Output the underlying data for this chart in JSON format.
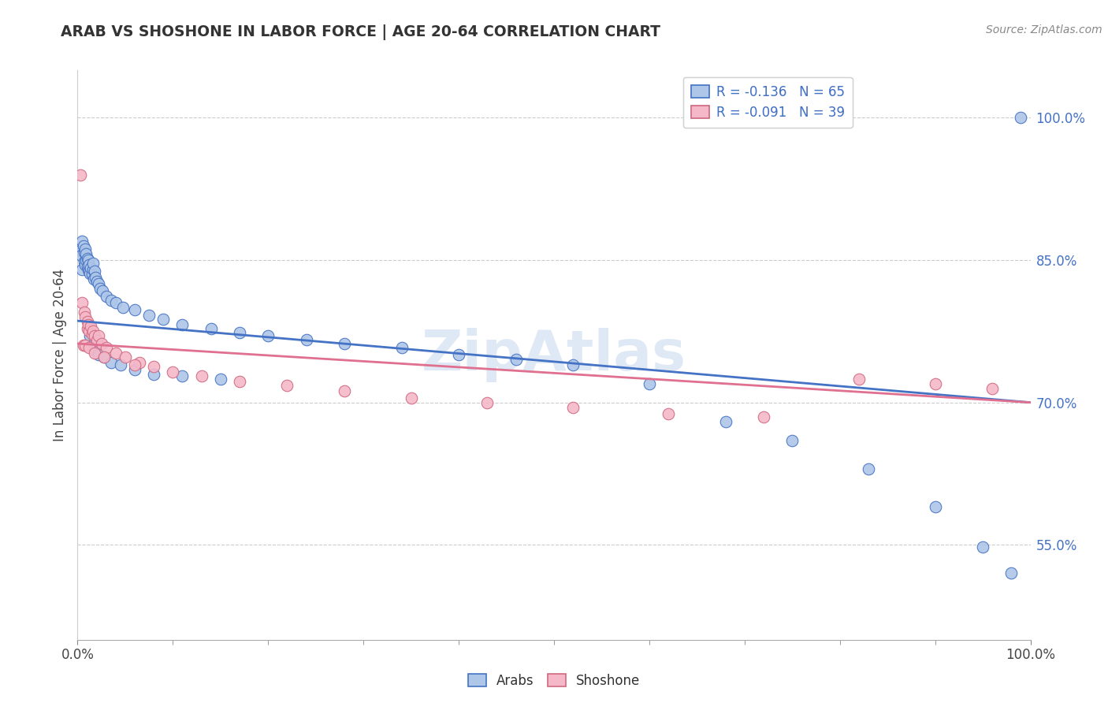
{
  "title": "ARAB VS SHOSHONE IN LABOR FORCE | AGE 20-64 CORRELATION CHART",
  "source": "Source: ZipAtlas.com",
  "ylabel": "In Labor Force | Age 20-64",
  "xlim": [
    0.0,
    1.0
  ],
  "ylim": [
    0.45,
    1.05
  ],
  "yticks": [
    0.55,
    0.7,
    0.85,
    1.0
  ],
  "ytick_labels": [
    "55.0%",
    "70.0%",
    "85.0%",
    "100.0%"
  ],
  "xtick_labels": [
    "0.0%",
    "100.0%"
  ],
  "arab_R": "-0.136",
  "arab_N": "65",
  "shoshone_R": "-0.091",
  "shoshone_N": "39",
  "arab_color": "#aec6e8",
  "shoshone_color": "#f4b8c8",
  "arab_line_color": "#4472c4",
  "shoshone_line_color": "#e07090",
  "watermark": "ZipAtlas",
  "arab_trend_start": 0.786,
  "arab_trend_end": 0.7,
  "shoshone_trend_start": 0.762,
  "shoshone_trend_end": 0.7,
  "arab_x": [
    0.003,
    0.004,
    0.005,
    0.005,
    0.006,
    0.007,
    0.007,
    0.008,
    0.008,
    0.009,
    0.009,
    0.01,
    0.01,
    0.011,
    0.011,
    0.012,
    0.012,
    0.013,
    0.014,
    0.015,
    0.016,
    0.016,
    0.017,
    0.018,
    0.019,
    0.02,
    0.022,
    0.024,
    0.026,
    0.03,
    0.035,
    0.04,
    0.048,
    0.06,
    0.075,
    0.09,
    0.11,
    0.14,
    0.17,
    0.2,
    0.24,
    0.28,
    0.34,
    0.4,
    0.46,
    0.52,
    0.6,
    0.68,
    0.75,
    0.83,
    0.9,
    0.95,
    0.98,
    0.013,
    0.015,
    0.018,
    0.022,
    0.028,
    0.035,
    0.045,
    0.06,
    0.08,
    0.11,
    0.15,
    0.99
  ],
  "arab_y": [
    0.86,
    0.855,
    0.87,
    0.84,
    0.865,
    0.848,
    0.858,
    0.845,
    0.862,
    0.85,
    0.857,
    0.843,
    0.852,
    0.84,
    0.85,
    0.838,
    0.845,
    0.836,
    0.842,
    0.835,
    0.84,
    0.847,
    0.83,
    0.838,
    0.832,
    0.828,
    0.825,
    0.82,
    0.818,
    0.812,
    0.808,
    0.805,
    0.8,
    0.798,
    0.792,
    0.788,
    0.782,
    0.778,
    0.774,
    0.77,
    0.766,
    0.762,
    0.758,
    0.75,
    0.745,
    0.74,
    0.72,
    0.68,
    0.66,
    0.63,
    0.59,
    0.548,
    0.52,
    0.77,
    0.76,
    0.755,
    0.75,
    0.748,
    0.742,
    0.74,
    0.735,
    0.73,
    0.728,
    0.725,
    1.0
  ],
  "shoshone_x": [
    0.003,
    0.005,
    0.007,
    0.008,
    0.01,
    0.01,
    0.011,
    0.012,
    0.014,
    0.015,
    0.016,
    0.018,
    0.02,
    0.022,
    0.025,
    0.03,
    0.04,
    0.05,
    0.065,
    0.08,
    0.1,
    0.13,
    0.17,
    0.22,
    0.28,
    0.35,
    0.43,
    0.52,
    0.62,
    0.72,
    0.82,
    0.9,
    0.96,
    0.006,
    0.008,
    0.012,
    0.018,
    0.028,
    0.06
  ],
  "shoshone_y": [
    0.94,
    0.805,
    0.795,
    0.79,
    0.785,
    0.778,
    0.782,
    0.775,
    0.78,
    0.772,
    0.775,
    0.77,
    0.765,
    0.77,
    0.762,
    0.758,
    0.752,
    0.748,
    0.742,
    0.738,
    0.732,
    0.728,
    0.722,
    0.718,
    0.712,
    0.705,
    0.7,
    0.695,
    0.688,
    0.685,
    0.725,
    0.72,
    0.715,
    0.76,
    0.76,
    0.758,
    0.752,
    0.748,
    0.74
  ]
}
